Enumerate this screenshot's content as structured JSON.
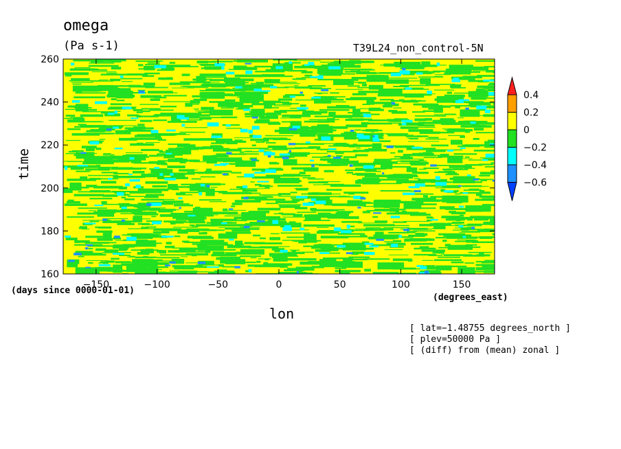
{
  "chart_data": {
    "type": "heatmap",
    "title": "omega",
    "units": "(Pa s-1)",
    "experiment": "T39L24_non_control-5N",
    "xlabel": "lon",
    "ylabel": "time",
    "x_units": "(degrees_east)",
    "y_units": "(days since 0000-01-01)",
    "xlim": [
      -177,
      177
    ],
    "ylim": [
      160,
      260
    ],
    "x_ticks": [
      -150,
      -100,
      -50,
      0,
      50,
      100,
      150
    ],
    "x_tick_labels": [
      "−150",
      "−100",
      "−50",
      "0",
      "50",
      "100",
      "150"
    ],
    "y_ticks": [
      160,
      180,
      200,
      220,
      240,
      260
    ],
    "y_tick_labels": [
      "160",
      "180",
      "200",
      "220",
      "240",
      "260"
    ],
    "colorbar": {
      "levels": [
        0.4,
        0.2,
        0,
        -0.2,
        -0.4,
        -0.6
      ],
      "level_labels": [
        "0.4",
        "0.2",
        "0",
        "−0.2",
        "−0.4",
        "−0.6"
      ],
      "colors": [
        "#ff1f1f",
        "#ff9f00",
        "#ffff00",
        "#22e022",
        "#00ffff",
        "#1e90ff",
        "#0040ff"
      ]
    },
    "field_description_colors": {
      "dominant": "#ffff00",
      "secondary": "#22e022",
      "minor": "#00ffff",
      "rare": "#1e90ff"
    },
    "notes": [
      "[ lat=−1.48755 degrees_north ]",
      "[ plev=50000 Pa ]",
      "[ (diff) from (mean) zonal ]"
    ]
  }
}
